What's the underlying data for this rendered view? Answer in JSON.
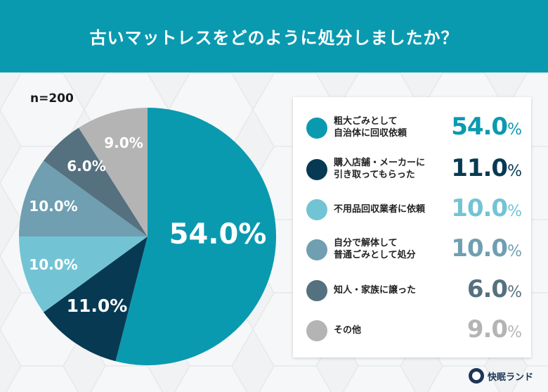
{
  "header": {
    "title": "古いマットレスをどのように処分しましたか？"
  },
  "sample_label": "n=200",
  "chart_data": {
    "type": "pie",
    "title": "古いマットレスをどのように処分しましたか？",
    "subtitle": "n=200",
    "categories": [
      "粗大ごみとして自治体に回収依頼",
      "購入店舗・メーカーに引き取ってもらった",
      "不用品回収業者に依頼",
      "自分で解体して普通ごみとして処分",
      "知人・家族に譲った",
      "その他"
    ],
    "values": [
      54.0,
      11.0,
      10.0,
      10.0,
      6.0,
      9.0
    ],
    "colors": [
      "#0a9ab0",
      "#073a52",
      "#72c4d4",
      "#6f9fb1",
      "#55707e",
      "#b4b4b4"
    ],
    "start_angle": "12 o'clock, clockwise",
    "legend_position": "right"
  },
  "legend": {
    "items": [
      {
        "label": "粗大ごみとして\n自治体に回収依頼",
        "value": "54.0",
        "sign": "%",
        "color": "#0a9ab0"
      },
      {
        "label": "購入店舗・メーカーに\n引き取ってもらった",
        "value": "11.0",
        "sign": "%",
        "color": "#073a52"
      },
      {
        "label": "不用品回収業者に依頼",
        "value": "10.0",
        "sign": "%",
        "color": "#72c4d4"
      },
      {
        "label": "自分で解体して\n普通ごみとして処分",
        "value": "10.0",
        "sign": "%",
        "color": "#6f9fb1"
      },
      {
        "label": "知人・家族に譲った",
        "value": "6.0",
        "sign": "%",
        "color": "#55707e"
      },
      {
        "label": "その他",
        "value": "9.0",
        "sign": "%",
        "color": "#b4b4b4"
      }
    ]
  },
  "pie_labels": [
    "54.0%",
    "11.0%",
    "10.0%",
    "10.0%",
    "6.0%",
    "9.0%"
  ],
  "brand": {
    "name": "快眠ランド"
  }
}
